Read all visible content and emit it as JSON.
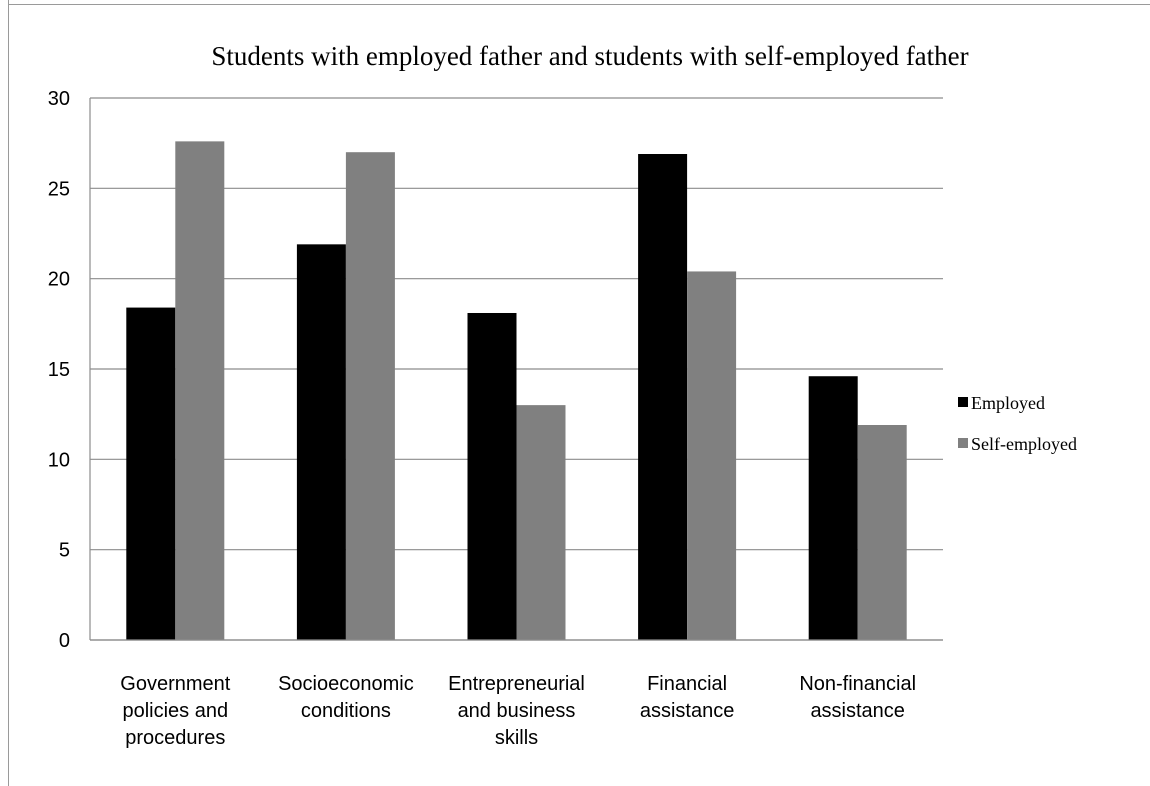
{
  "chart_data": {
    "type": "bar",
    "title": "Students with employed father and students with self-employed father",
    "xlabel": "",
    "ylabel": "",
    "ylim": [
      0,
      30
    ],
    "yticks": [
      0,
      5,
      10,
      15,
      20,
      25,
      30
    ],
    "grid": true,
    "legend_position": "right",
    "categories": [
      [
        "Government",
        "policies and",
        "procedures"
      ],
      [
        "Socioeconomic",
        "conditions"
      ],
      [
        "Entrepreneurial",
        "and business",
        "skills"
      ],
      [
        "Financial",
        "assistance"
      ],
      [
        "Non-financial",
        "assistance"
      ]
    ],
    "series": [
      {
        "name": "Employed",
        "color": "#000000",
        "values": [
          18.4,
          21.9,
          18.1,
          26.9,
          14.6
        ]
      },
      {
        "name": "Self-employed",
        "color": "#808080",
        "values": [
          27.6,
          27.0,
          13.0,
          20.4,
          11.9
        ]
      }
    ]
  }
}
